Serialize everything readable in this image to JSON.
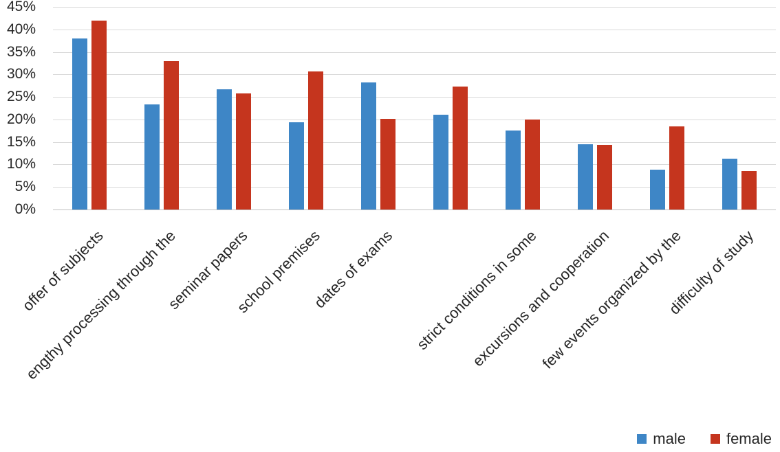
{
  "chart_data": {
    "type": "bar",
    "title": "",
    "xlabel": "",
    "ylabel": "",
    "categories": [
      "offer of subjects",
      "engthy processing through the",
      "seminar papers",
      "school premises",
      "dates of exams",
      "",
      "strict conditions in some",
      "excursions and cooperation",
      "few events organized by the",
      "difficulty of study"
    ],
    "series": [
      {
        "name": "male",
        "color": "#3e86c6",
        "values": [
          38.0,
          23.4,
          26.7,
          19.3,
          28.2,
          21.1,
          17.5,
          14.5,
          8.8,
          11.3
        ]
      },
      {
        "name": "female",
        "color": "#c5351e",
        "values": [
          42.0,
          33.0,
          25.8,
          30.7,
          20.1,
          27.3,
          20.0,
          14.3,
          18.4,
          8.6
        ]
      }
    ],
    "y_ticks": [
      "45%",
      "40%",
      "35%",
      "30%",
      "25%",
      "20%",
      "15%",
      "10%",
      "5%",
      "0%"
    ],
    "ylim": [
      0,
      45
    ],
    "ytick_step": 5,
    "grid": true,
    "legend_position": "bottom-right",
    "colors": {
      "grid": "#d9d9d9",
      "axis_line": "#bfbfbf",
      "text": "#262626"
    }
  }
}
